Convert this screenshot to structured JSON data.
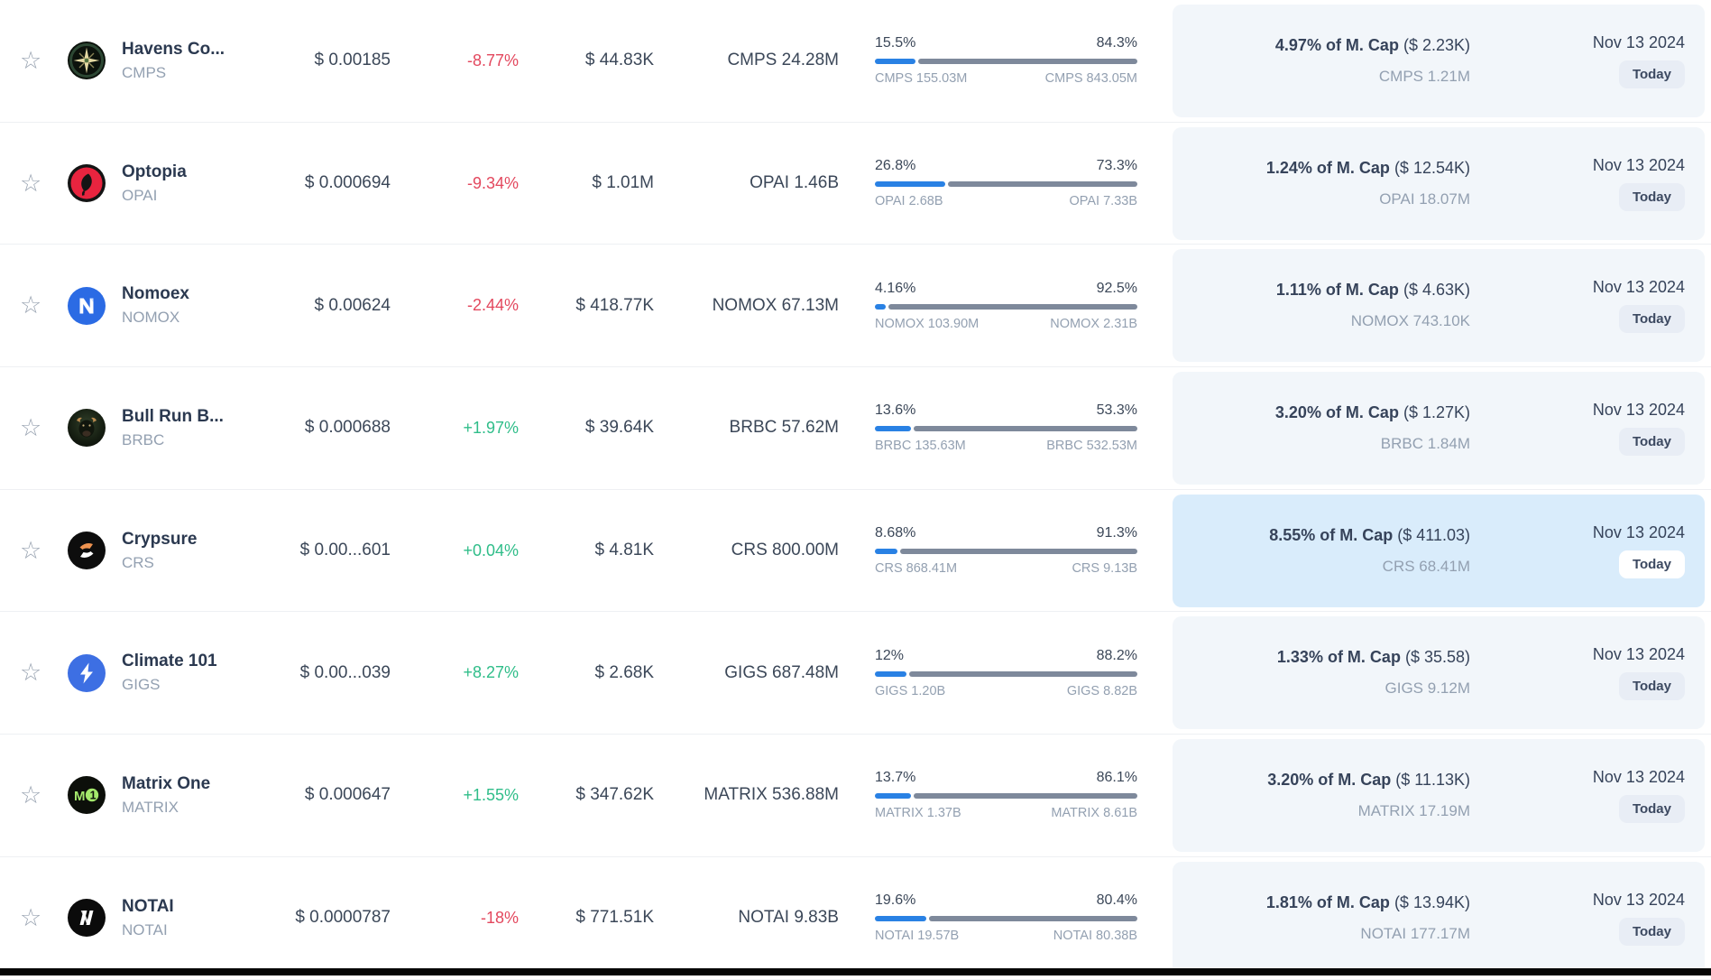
{
  "date_label": "Nov 13 2024",
  "today_label": "Today",
  "colors": {
    "positive": "#2fbd89",
    "negative": "#e3485e",
    "bar_fill": "#2981e4",
    "bar_track": "#7e899b",
    "card_background": "#f2f6fa",
    "card_highlight": "#d9ecfb"
  },
  "rows": [
    {
      "name": "Havens Co...",
      "symbol": "CMPS",
      "icon": "cmps-compass-logo",
      "price": "$ 0.00185",
      "change": "-8.77%",
      "change_dir": "down",
      "volume": "$ 44.83K",
      "supply": "CMPS 24.28M",
      "bar": {
        "left_pct": "15.5%",
        "right_pct": "84.3%",
        "left_label": "CMPS 155.03M",
        "right_label": "CMPS 843.05M",
        "fill": 15.5
      },
      "mcap": {
        "bold": "4.97% of M. Cap",
        "paren": "($ 2.23K)",
        "sub": "CMPS 1.21M"
      },
      "highlighted": false
    },
    {
      "name": "Optopia",
      "symbol": "OPAI",
      "icon": "opai-leaf-logo",
      "price": "$ 0.000694",
      "change": "-9.34%",
      "change_dir": "down",
      "volume": "$ 1.01M",
      "supply": "OPAI 1.46B",
      "bar": {
        "left_pct": "26.8%",
        "right_pct": "73.3%",
        "left_label": "OPAI 2.68B",
        "right_label": "OPAI 7.33B",
        "fill": 26.8
      },
      "mcap": {
        "bold": "1.24% of M. Cap",
        "paren": "($ 12.54K)",
        "sub": "OPAI 18.07M"
      },
      "highlighted": false
    },
    {
      "name": "Nomoex",
      "symbol": "NOMOX",
      "icon": "nomox-n-logo",
      "price": "$ 0.00624",
      "change": "-2.44%",
      "change_dir": "down",
      "volume": "$ 418.77K",
      "supply": "NOMOX 67.13M",
      "bar": {
        "left_pct": "4.16%",
        "right_pct": "92.5%",
        "left_label": "NOMOX 103.90M",
        "right_label": "NOMOX 2.31B",
        "fill": 4.16
      },
      "mcap": {
        "bold": "1.11% of M. Cap",
        "paren": "($ 4.63K)",
        "sub": "NOMOX 743.10K"
      },
      "highlighted": false
    },
    {
      "name": "Bull Run B...",
      "symbol": "BRBC",
      "icon": "brbc-bull-logo",
      "price": "$ 0.000688",
      "change": "+1.97%",
      "change_dir": "up",
      "volume": "$ 39.64K",
      "supply": "BRBC 57.62M",
      "bar": {
        "left_pct": "13.6%",
        "right_pct": "53.3%",
        "left_label": "BRBC 135.63M",
        "right_label": "BRBC 532.53M",
        "fill": 13.6
      },
      "mcap": {
        "bold": "3.20% of M. Cap",
        "paren": "($ 1.27K)",
        "sub": "BRBC 1.84M"
      },
      "highlighted": false
    },
    {
      "name": "Crypsure",
      "symbol": "CRS",
      "icon": "crs-s-logo",
      "price": "$ 0.00...601",
      "change": "+0.04%",
      "change_dir": "up",
      "volume": "$ 4.81K",
      "supply": "CRS 800.00M",
      "bar": {
        "left_pct": "8.68%",
        "right_pct": "91.3%",
        "left_label": "CRS 868.41M",
        "right_label": "CRS 9.13B",
        "fill": 8.68
      },
      "mcap": {
        "bold": "8.55% of M. Cap",
        "paren": "($ 411.03)",
        "sub": "CRS 68.41M"
      },
      "highlighted": true
    },
    {
      "name": "Climate 101",
      "symbol": "GIGS",
      "icon": "gigs-bolt-logo",
      "price": "$ 0.00...039",
      "change": "+8.27%",
      "change_dir": "up",
      "volume": "$ 2.68K",
      "supply": "GIGS 687.48M",
      "bar": {
        "left_pct": "12%",
        "right_pct": "88.2%",
        "left_label": "GIGS 1.20B",
        "right_label": "GIGS 8.82B",
        "fill": 12
      },
      "mcap": {
        "bold": "1.33% of M. Cap",
        "paren": "($ 35.58)",
        "sub": "GIGS 9.12M"
      },
      "highlighted": false
    },
    {
      "name": "Matrix One",
      "symbol": "MATRIX",
      "icon": "matrix-m1-logo",
      "price": "$ 0.000647",
      "change": "+1.55%",
      "change_dir": "up",
      "volume": "$ 347.62K",
      "supply": "MATRIX 536.88M",
      "bar": {
        "left_pct": "13.7%",
        "right_pct": "86.1%",
        "left_label": "MATRIX 1.37B",
        "right_label": "MATRIX 8.61B",
        "fill": 13.7
      },
      "mcap": {
        "bold": "3.20% of M. Cap",
        "paren": "($ 11.13K)",
        "sub": "MATRIX 17.19M"
      },
      "highlighted": false
    },
    {
      "name": "NOTAI",
      "symbol": "NOTAI",
      "icon": "notai-n-logo",
      "price": "$ 0.0000787",
      "change": "-18%",
      "change_dir": "down",
      "volume": "$ 771.51K",
      "supply": "NOTAI 9.83B",
      "bar": {
        "left_pct": "19.6%",
        "right_pct": "80.4%",
        "left_label": "NOTAI 19.57B",
        "right_label": "NOTAI 80.38B",
        "fill": 19.6
      },
      "mcap": {
        "bold": "1.81% of M. Cap",
        "paren": "($ 13.94K)",
        "sub": "NOTAI 177.17M"
      },
      "highlighted": false
    }
  ]
}
